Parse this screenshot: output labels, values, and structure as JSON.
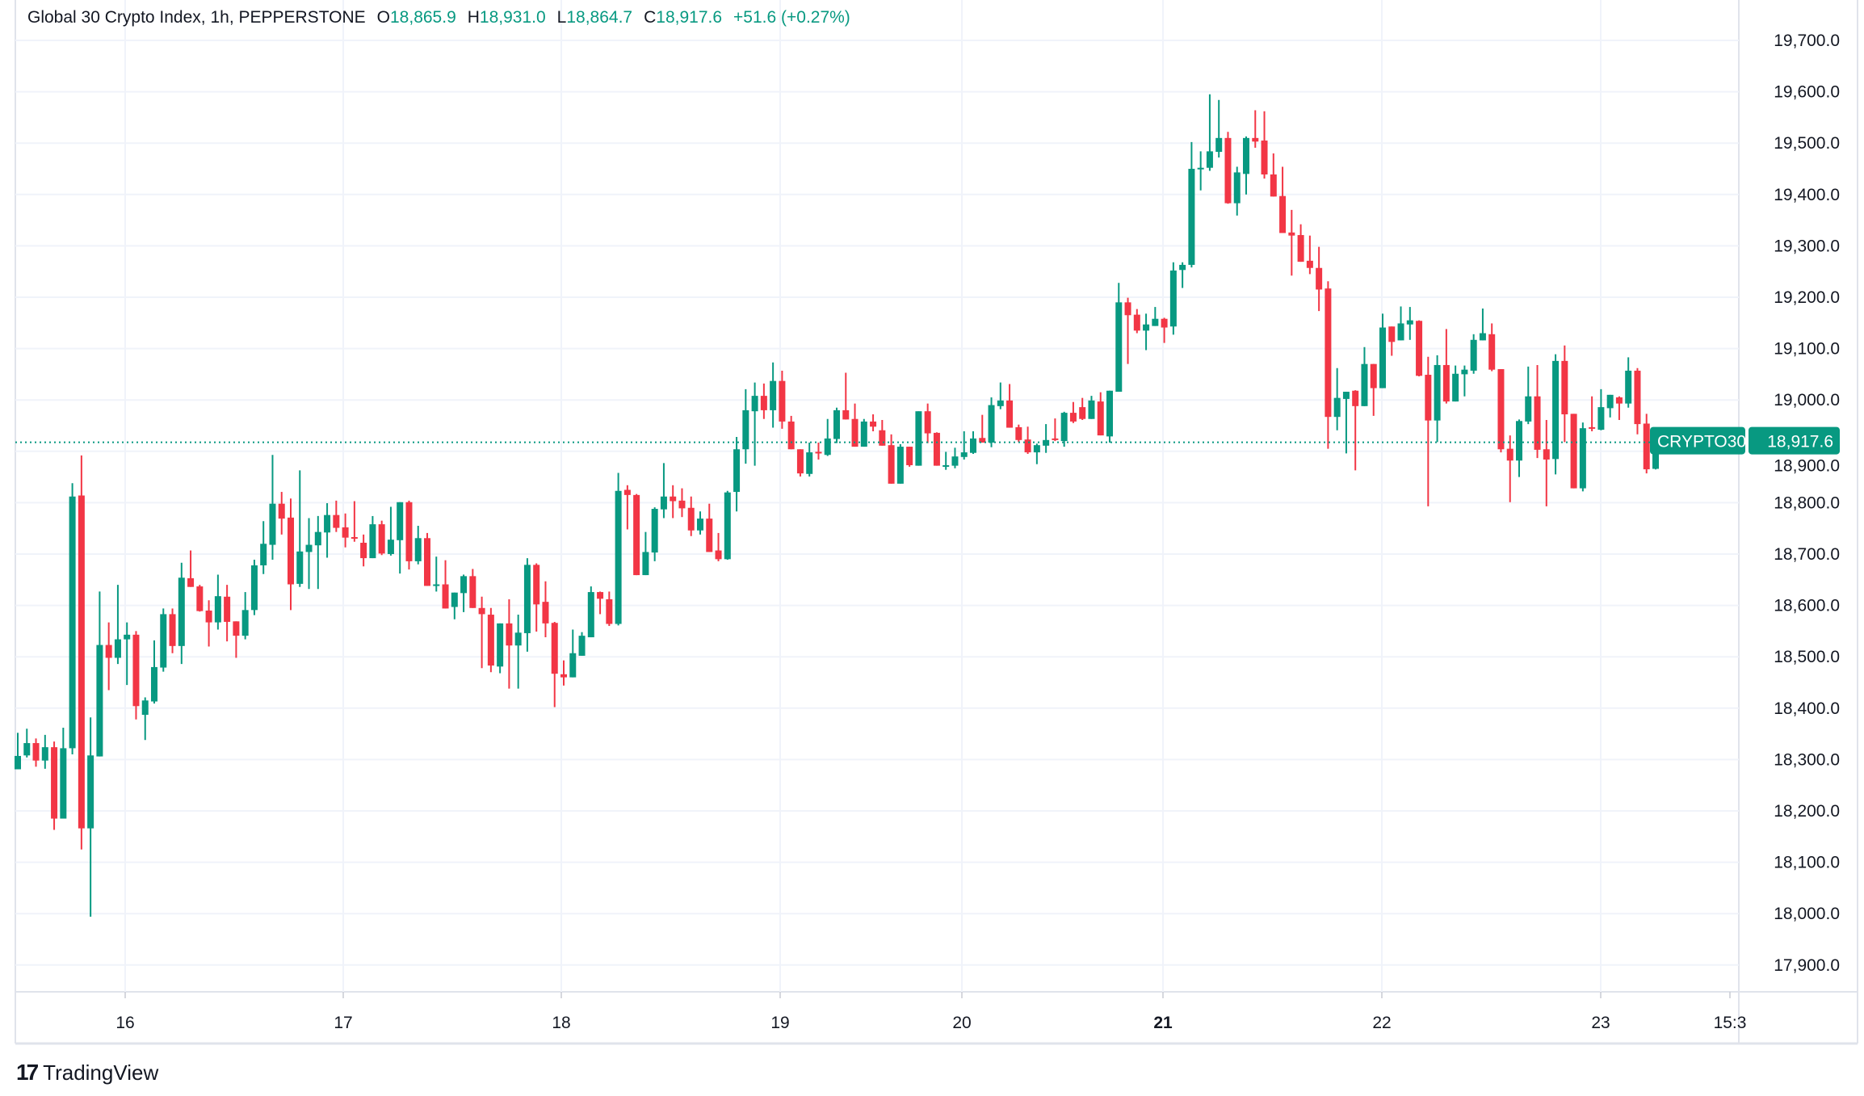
{
  "legend": {
    "symbol": "Global 30 Crypto Index, 1h, PEPPERSTONE",
    "open_label": "O",
    "open": "18,865.9",
    "high_label": "H",
    "high": "18,931.0",
    "low_label": "L",
    "low": "18,864.7",
    "close_label": "C",
    "close": "18,917.6",
    "change": "+51.6 (+0.27%)"
  },
  "price_label": {
    "ticker": "CRYPTO30",
    "value": "18,917.6"
  },
  "brand": {
    "logo_icon": "tradingview-logo-icon",
    "name": "TradingView"
  },
  "colors": {
    "up": "#089981",
    "down": "#F23645",
    "grid": "#f0f3fa",
    "text": "#131722"
  },
  "chart_data": {
    "type": "candlestick",
    "title": "Global 30 Crypto Index, 1h, PEPPERSTONE",
    "interval": "1h",
    "ylim": [
      17850,
      19750
    ],
    "y_ticks": [
      "19,700.0",
      "19,600.0",
      "19,500.0",
      "19,400.0",
      "19,300.0",
      "19,200.0",
      "19,100.0",
      "19,000.0",
      "18,900.0",
      "18,800.0",
      "18,700.0",
      "18,600.0",
      "18,500.0",
      "18,400.0",
      "18,300.0",
      "18,200.0",
      "18,100.0",
      "18,000.0",
      "17,900.0"
    ],
    "y_tick_values": [
      19700,
      19600,
      19500,
      19400,
      19300,
      19200,
      19100,
      19000,
      18900,
      18800,
      18700,
      18600,
      18500,
      18400,
      18300,
      18200,
      18100,
      18000,
      17900
    ],
    "x_ticks": [
      "16",
      "17",
      "18",
      "19",
      "20",
      "21",
      "22",
      "23",
      "15:3"
    ],
    "grid": true,
    "last_price": 18917.6,
    "ohlc": [
      [
        18281,
        18352,
        18281,
        18307
      ],
      [
        18308,
        18360,
        18304,
        18332
      ],
      [
        18332,
        18341,
        18286,
        18298
      ],
      [
        18298,
        18348,
        18282,
        18324
      ],
      [
        18324,
        18335,
        18163,
        18185
      ],
      [
        18185,
        18362,
        18185,
        18322
      ],
      [
        18322,
        18838,
        18310,
        18812
      ],
      [
        18814,
        18892,
        18125,
        18166
      ],
      [
        18166,
        18382,
        17994,
        18308
      ],
      [
        18306,
        18627,
        18306,
        18523
      ],
      [
        18523,
        18567,
        18435,
        18498
      ],
      [
        18498,
        18640,
        18486,
        18534
      ],
      [
        18534,
        18567,
        18445,
        18543
      ],
      [
        18543,
        18550,
        18378,
        18404
      ],
      [
        18387,
        18421,
        18338,
        18415
      ],
      [
        18413,
        18532,
        18409,
        18480
      ],
      [
        18479,
        18594,
        18471,
        18583
      ],
      [
        18583,
        18594,
        18507,
        18521
      ],
      [
        18521,
        18683,
        18486,
        18654
      ],
      [
        18653,
        18707,
        18636,
        18636
      ],
      [
        18637,
        18640,
        18588,
        18589
      ],
      [
        18590,
        18610,
        18520,
        18567
      ],
      [
        18567,
        18660,
        18553,
        18618
      ],
      [
        18617,
        18640,
        18530,
        18568
      ],
      [
        18569,
        18569,
        18498,
        18541
      ],
      [
        18541,
        18626,
        18534,
        18591
      ],
      [
        18591,
        18689,
        18581,
        18678
      ],
      [
        18678,
        18764,
        18661,
        18720
      ],
      [
        18718,
        18893,
        18689,
        18798
      ],
      [
        18798,
        18821,
        18738,
        18769
      ],
      [
        18771,
        18808,
        18591,
        18641
      ],
      [
        18642,
        18863,
        18636,
        18705
      ],
      [
        18704,
        18770,
        18632,
        18718
      ],
      [
        18717,
        18774,
        18632,
        18743
      ],
      [
        18742,
        18799,
        18693,
        18776
      ],
      [
        18776,
        18804,
        18743,
        18751
      ],
      [
        18752,
        18779,
        18713,
        18732
      ],
      [
        18733,
        18803,
        18724,
        18732
      ],
      [
        18722,
        18738,
        18676,
        18692
      ],
      [
        18692,
        18774,
        18692,
        18758
      ],
      [
        18758,
        18765,
        18698,
        18701
      ],
      [
        18700,
        18792,
        18697,
        18728
      ],
      [
        18727,
        18801,
        18662,
        18801
      ],
      [
        18801,
        18804,
        18670,
        18686
      ],
      [
        18686,
        18755,
        18680,
        18731
      ],
      [
        18731,
        18741,
        18638,
        18638
      ],
      [
        18638,
        18695,
        18627,
        18641
      ],
      [
        18641,
        18688,
        18594,
        18594
      ],
      [
        18597,
        18625,
        18573,
        18625
      ],
      [
        18624,
        18660,
        18587,
        18657
      ],
      [
        18657,
        18671,
        18595,
        18595
      ],
      [
        18595,
        18617,
        18478,
        18583
      ],
      [
        18582,
        18595,
        18470,
        18483
      ],
      [
        18481,
        18565,
        18468,
        18565
      ],
      [
        18565,
        18612,
        18438,
        18522
      ],
      [
        18522,
        18582,
        18438,
        18547
      ],
      [
        18546,
        18692,
        18510,
        18679
      ],
      [
        18679,
        18682,
        18549,
        18602
      ],
      [
        18607,
        18647,
        18538,
        18565
      ],
      [
        18566,
        18568,
        18402,
        18467
      ],
      [
        18466,
        18493,
        18444,
        18460
      ],
      [
        18460,
        18553,
        18460,
        18507
      ],
      [
        18502,
        18548,
        18502,
        18541
      ],
      [
        18538,
        18637,
        18538,
        18626
      ],
      [
        18626,
        18627,
        18583,
        18613
      ],
      [
        18612,
        18627,
        18560,
        18564
      ],
      [
        18564,
        18858,
        18561,
        18823
      ],
      [
        18825,
        18834,
        18748,
        18815
      ],
      [
        18815,
        18817,
        18659,
        18659
      ],
      [
        18659,
        18743,
        18659,
        18704
      ],
      [
        18703,
        18791,
        18686,
        18788
      ],
      [
        18787,
        18877,
        18770,
        18812
      ],
      [
        18812,
        18834,
        18770,
        18803
      ],
      [
        18804,
        18828,
        18772,
        18789
      ],
      [
        18790,
        18812,
        18735,
        18746
      ],
      [
        18746,
        18783,
        18738,
        18769
      ],
      [
        18769,
        18798,
        18704,
        18704
      ],
      [
        18707,
        18741,
        18686,
        18690
      ],
      [
        18690,
        18823,
        18689,
        18820
      ],
      [
        18821,
        18928,
        18783,
        18904
      ],
      [
        18904,
        19021,
        18876,
        18980
      ],
      [
        18978,
        19034,
        18872,
        19008
      ],
      [
        19008,
        19032,
        18963,
        18980
      ],
      [
        18980,
        19073,
        18946,
        19037
      ],
      [
        19037,
        19057,
        18944,
        18958
      ],
      [
        18958,
        18969,
        18904,
        18904
      ],
      [
        18904,
        18904,
        18851,
        18857
      ],
      [
        18856,
        18917,
        18851,
        18898
      ],
      [
        18899,
        18917,
        18884,
        18898
      ],
      [
        18893,
        18963,
        18891,
        18925
      ],
      [
        18924,
        18985,
        18916,
        18980
      ],
      [
        18980,
        19053,
        18962,
        18962
      ],
      [
        18963,
        18993,
        18909,
        18909
      ],
      [
        18909,
        18963,
        18909,
        18958
      ],
      [
        18958,
        18972,
        18939,
        18948
      ],
      [
        18941,
        18961,
        18911,
        18911
      ],
      [
        18912,
        18933,
        18837,
        18837
      ],
      [
        18837,
        18914,
        18837,
        18909
      ],
      [
        18909,
        18909,
        18870,
        18873
      ],
      [
        18872,
        18978,
        18872,
        18978
      ],
      [
        18978,
        18993,
        18916,
        18935
      ],
      [
        18936,
        18937,
        18872,
        18872
      ],
      [
        18872,
        18899,
        18864,
        18873
      ],
      [
        18872,
        18907,
        18867,
        18890
      ],
      [
        18889,
        18939,
        18884,
        18898
      ],
      [
        18897,
        18939,
        18895,
        18925
      ],
      [
        18926,
        18971,
        18917,
        18917
      ],
      [
        18917,
        19005,
        18908,
        18990
      ],
      [
        18988,
        19034,
        18982,
        18999
      ],
      [
        18999,
        19031,
        18946,
        18946
      ],
      [
        18947,
        18952,
        18918,
        18922
      ],
      [
        18923,
        18948,
        18895,
        18898
      ],
      [
        18898,
        18915,
        18875,
        18912
      ],
      [
        18911,
        18953,
        18897,
        18922
      ],
      [
        18925,
        18964,
        18920,
        18922
      ],
      [
        18920,
        18977,
        18909,
        18975
      ],
      [
        18975,
        18996,
        18955,
        18958
      ],
      [
        18986,
        19004,
        18961,
        18963
      ],
      [
        18963,
        19008,
        18963,
        18999
      ],
      [
        18997,
        19015,
        18931,
        18931
      ],
      [
        18929,
        19018,
        18917,
        19018
      ],
      [
        19016,
        19228,
        19016,
        19190
      ],
      [
        19190,
        19199,
        19070,
        19165
      ],
      [
        19166,
        19177,
        19130,
        19135
      ],
      [
        19135,
        19168,
        19097,
        19147
      ],
      [
        19144,
        19181,
        19144,
        19158
      ],
      [
        19158,
        19160,
        19111,
        19141
      ],
      [
        19143,
        19268,
        19127,
        19252
      ],
      [
        19253,
        19268,
        19218,
        19263
      ],
      [
        19263,
        19502,
        19258,
        19450
      ],
      [
        19451,
        19484,
        19408,
        19452
      ],
      [
        19452,
        19595,
        19446,
        19484
      ],
      [
        19483,
        19584,
        19472,
        19510
      ],
      [
        19510,
        19522,
        19382,
        19383
      ],
      [
        19383,
        19454,
        19359,
        19443
      ],
      [
        19440,
        19513,
        19400,
        19510
      ],
      [
        19510,
        19564,
        19491,
        19503
      ],
      [
        19505,
        19562,
        19431,
        19439
      ],
      [
        19439,
        19480,
        19396,
        19396
      ],
      [
        19397,
        19454,
        19325,
        19325
      ],
      [
        19326,
        19370,
        19242,
        19320
      ],
      [
        19321,
        19342,
        19269,
        19269
      ],
      [
        19271,
        19320,
        19245,
        19257
      ],
      [
        19257,
        19298,
        19173,
        19215
      ],
      [
        19217,
        19231,
        18905,
        18967
      ],
      [
        18967,
        19062,
        18941,
        19004
      ],
      [
        19002,
        19016,
        18896,
        19016
      ],
      [
        19018,
        19019,
        18863,
        18988
      ],
      [
        18988,
        19103,
        18988,
        19070
      ],
      [
        19070,
        19070,
        18969,
        19023
      ],
      [
        19023,
        19168,
        19023,
        19141
      ],
      [
        19143,
        19143,
        19086,
        19113
      ],
      [
        19116,
        19182,
        19116,
        19149
      ],
      [
        19147,
        19181,
        19117,
        19155
      ],
      [
        19154,
        19155,
        19046,
        19047
      ],
      [
        19049,
        19084,
        18793,
        18960
      ],
      [
        18960,
        19087,
        18918,
        19068
      ],
      [
        19068,
        19138,
        18993,
        18997
      ],
      [
        18997,
        19067,
        18997,
        19051
      ],
      [
        19050,
        19067,
        19007,
        19059
      ],
      [
        19057,
        19128,
        19051,
        19117
      ],
      [
        19116,
        19178,
        19116,
        19130
      ],
      [
        19128,
        19149,
        19056,
        19059
      ],
      [
        19060,
        19060,
        18898,
        18904
      ],
      [
        18905,
        18931,
        18801,
        18882
      ],
      [
        18882,
        18962,
        18850,
        18959
      ],
      [
        18958,
        19065,
        18953,
        19007
      ],
      [
        19007,
        19068,
        18887,
        18903
      ],
      [
        18904,
        18961,
        18793,
        18884
      ],
      [
        18885,
        19089,
        18855,
        19076
      ],
      [
        19076,
        19106,
        18918,
        18972
      ],
      [
        18973,
        18973,
        18828,
        18828
      ],
      [
        18828,
        18956,
        18822,
        18945
      ],
      [
        18947,
        19007,
        18939,
        18944
      ],
      [
        18942,
        19021,
        18941,
        18986
      ],
      [
        18984,
        19010,
        18966,
        19010
      ],
      [
        19005,
        19007,
        18961,
        18993
      ],
      [
        18993,
        19083,
        18985,
        19057
      ],
      [
        19057,
        19062,
        18933,
        18953
      ],
      [
        18954,
        18973,
        18857,
        18865
      ],
      [
        18865.9,
        18931.0,
        18864.7,
        18917.6
      ]
    ]
  }
}
